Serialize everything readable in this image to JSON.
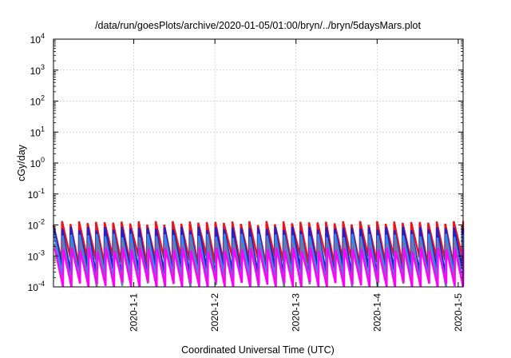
{
  "chart_data": {
    "type": "line",
    "title": "/data/run/goesPlots/archive/2020-01-05/01:00/bryn/../bryn/5daysMars.plot",
    "xlabel": "Coordinated Universal Time (UTC)",
    "ylabel": "cGy/day",
    "yscale": "log",
    "ylim": [
      0.0001,
      10000
    ],
    "xlim_days": [
      -0.99,
      4.06
    ],
    "grid": true,
    "x_ticks": [
      {
        "label": "2020-1-1",
        "value": 0
      },
      {
        "label": "2020-1-2",
        "value": 1
      },
      {
        "label": "2020-1-3",
        "value": 2
      },
      {
        "label": "2020-1-4",
        "value": 3
      },
      {
        "label": "2020-1-5",
        "value": 4
      }
    ],
    "y_ticks": [
      {
        "base": "10",
        "exp": "4",
        "value": 10000
      },
      {
        "base": "10",
        "exp": "3",
        "value": 1000
      },
      {
        "base": "10",
        "exp": "2",
        "value": 100
      },
      {
        "base": "10",
        "exp": "1",
        "value": 10
      },
      {
        "base": "10",
        "exp": "0",
        "value": 1
      },
      {
        "base": "10",
        "exp": "-1",
        "value": 0.1
      },
      {
        "base": "10",
        "exp": "-2",
        "value": 0.01
      },
      {
        "base": "10",
        "exp": "-3",
        "value": 0.001
      },
      {
        "base": "10",
        "exp": "-4",
        "value": 0.0001
      }
    ],
    "series": [
      {
        "color": "#e8141e",
        "peak": 0.0115,
        "trough": 0.0007
      },
      {
        "color": "#1e1ed2",
        "peak": 0.0075,
        "trough": 0.0003
      },
      {
        "color": "#2a8cf0",
        "peak": 0.0045,
        "trough": 0.00017
      },
      {
        "color": "#6e78a0",
        "peak": 0.0028,
        "trough": 0.0001
      },
      {
        "color": "#ff00ff",
        "peak": 0.0016,
        "trough": 0.0001
      }
    ],
    "oscillation_period_days": 0.105
  }
}
